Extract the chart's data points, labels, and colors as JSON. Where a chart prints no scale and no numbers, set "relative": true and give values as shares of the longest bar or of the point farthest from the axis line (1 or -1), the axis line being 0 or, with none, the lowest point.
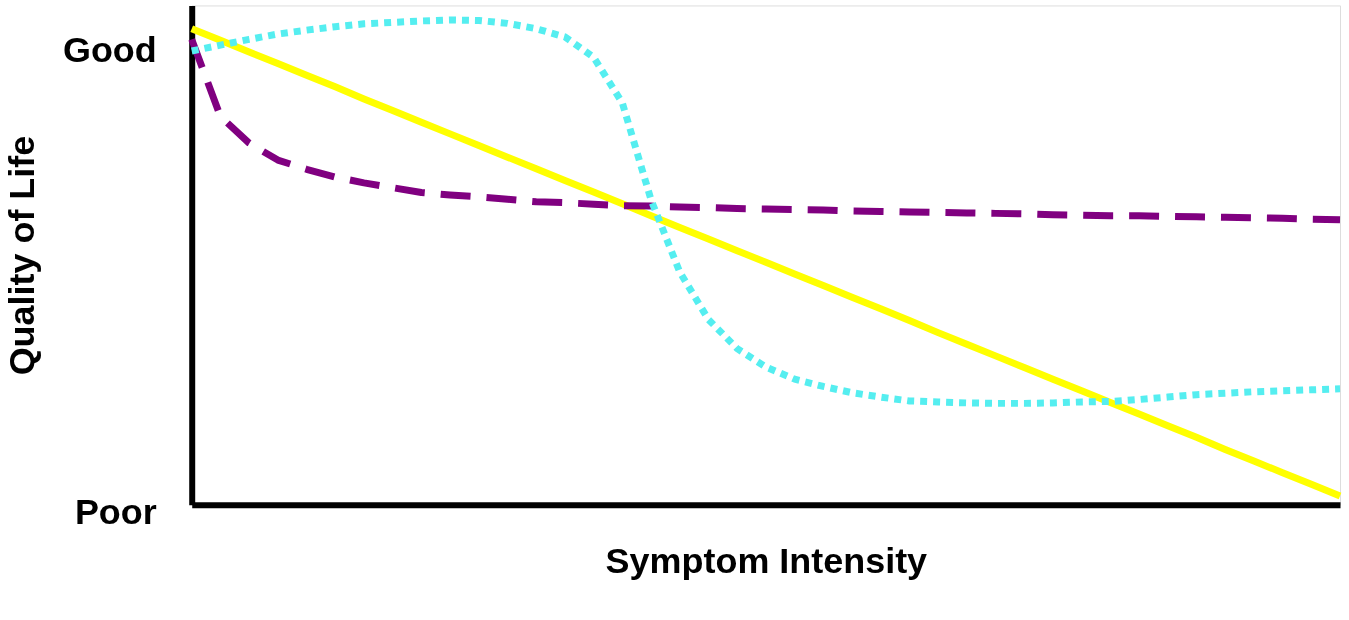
{
  "chart_data": {
    "type": "line",
    "relative": true,
    "xlabel": "Symptom Intensity",
    "ylabel": "Quality of Life",
    "annotations": [
      "Good",
      "Poor"
    ],
    "categories": [
      null,
      null,
      null,
      null,
      null,
      null,
      null,
      null,
      null,
      null,
      null,
      null,
      null,
      null,
      null,
      null,
      null,
      null,
      null,
      null,
      null,
      null,
      null,
      null,
      null,
      null,
      null,
      null,
      null,
      null,
      null,
      null,
      null,
      null,
      null,
      null,
      null,
      null,
      null,
      null,
      null
    ],
    "tick_labels": false,
    "grid": false,
    "legend": false,
    "marker": "none",
    "series": [
      {
        "color": "#ffff00",
        "line_style": "solid",
        "values": [
          0.982,
          0.958,
          0.934,
          0.91,
          0.886,
          0.862,
          0.837,
          0.813,
          0.789,
          0.765,
          0.741,
          0.717,
          0.693,
          0.669,
          0.645,
          0.621,
          0.596,
          0.572,
          0.548,
          0.524,
          0.5,
          0.476,
          0.452,
          0.428,
          0.404,
          0.38,
          0.355,
          0.331,
          0.307,
          0.283,
          0.259,
          0.235,
          0.211,
          0.187,
          0.163,
          0.139,
          0.114,
          0.09,
          0.066,
          0.042,
          0.018
        ]
      },
      {
        "color": "#800080",
        "line_style": "dashed",
        "values": [
          0.96,
          0.801,
          0.746,
          0.711,
          0.692,
          0.676,
          0.664,
          0.654,
          0.644,
          0.639,
          0.635,
          0.63,
          0.625,
          0.623,
          0.62,
          0.617,
          0.616,
          0.614,
          0.613,
          0.611,
          0.61,
          0.609,
          0.608,
          0.606,
          0.605,
          0.604,
          0.603,
          0.602,
          0.601,
          0.6,
          0.598,
          0.597,
          0.596,
          0.596,
          0.595,
          0.594,
          0.593,
          0.592,
          0.591,
          0.589,
          0.588
        ]
      },
      {
        "color": "#55eef0",
        "line_style": "dotted",
        "values": [
          0.936,
          0.948,
          0.96,
          0.971,
          0.979,
          0.986,
          0.992,
          0.995,
          0.998,
          1,
          0.999,
          0.993,
          0.982,
          0.965,
          0.923,
          0.829,
          0.629,
          0.48,
          0.382,
          0.322,
          0.284,
          0.259,
          0.244,
          0.231,
          0.222,
          0.214,
          0.212,
          0.21,
          0.209,
          0.209,
          0.21,
          0.212,
          0.213,
          0.217,
          0.222,
          0.227,
          0.23,
          0.233,
          0.235,
          0.237,
          0.239
        ]
      }
    ]
  }
}
